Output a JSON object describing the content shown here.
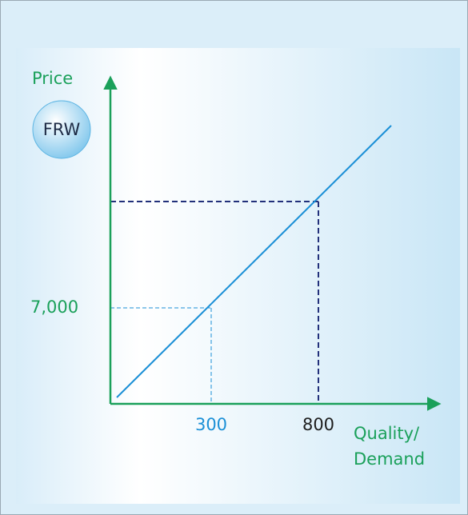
{
  "y_axis": {
    "label": "Price"
  },
  "x_axis": {
    "label": [
      "Quality/",
      "Demand"
    ]
  },
  "badge": "FRW",
  "labels": {
    "price": "7,000",
    "quantity_low": "300",
    "quantity_high": "800"
  }
}
